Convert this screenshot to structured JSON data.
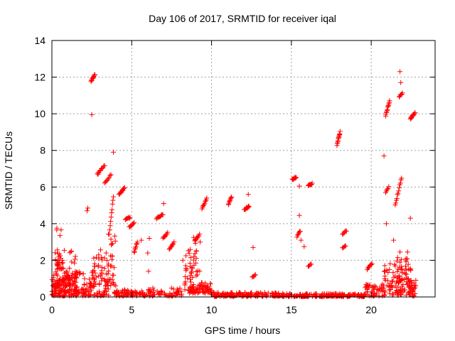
{
  "chart_data": {
    "type": "scatter",
    "title": "Day 106 of 2017, SRMTID for receiver iqal",
    "xlabel": "GPS time / hours",
    "ylabel": "SRMTID / TECUs",
    "xlim": [
      0,
      24
    ],
    "ylim": [
      0,
      14
    ],
    "xticks": [
      0,
      5,
      10,
      15,
      20
    ],
    "yticks": [
      0,
      2,
      4,
      6,
      8,
      10,
      12,
      14
    ],
    "grid": true,
    "marker": "+",
    "color": "#ff0000",
    "clusters": [
      {
        "x": [
          0.0,
          1.6
        ],
        "y": [
          0.05,
          1.2
        ],
        "n": 140
      },
      {
        "x": [
          0.2,
          1.5
        ],
        "y": [
          0.6,
          2.6
        ],
        "n": 60
      },
      {
        "x": [
          0.3,
          0.7
        ],
        "y": [
          1.5,
          3.8
        ],
        "n": 20
      },
      {
        "x": [
          1.4,
          2.0
        ],
        "y": [
          0.2,
          1.4
        ],
        "n": 30
      },
      {
        "x": [
          1.9,
          2.5
        ],
        "y": [
          0.05,
          1.0
        ],
        "n": 30
      },
      {
        "x": [
          2.4,
          2.7
        ],
        "y": [
          0.5,
          1.8
        ],
        "n": 12
      },
      {
        "x": [
          2.6,
          3.6
        ],
        "y": [
          0.05,
          2.6
        ],
        "n": 70
      },
      {
        "x": [
          3.5,
          4.0
        ],
        "y": [
          0.6,
          3.8
        ],
        "n": 28
      },
      {
        "x": [
          3.9,
          4.6
        ],
        "y": [
          0.05,
          0.4
        ],
        "n": 25
      },
      {
        "x": [
          4.6,
          6.0
        ],
        "y": [
          0.05,
          0.4
        ],
        "n": 45
      },
      {
        "x": [
          6.0,
          8.2
        ],
        "y": [
          0.05,
          0.5
        ],
        "n": 60
      },
      {
        "x": [
          8.3,
          8.8
        ],
        "y": [
          0.3,
          2.6
        ],
        "n": 30
      },
      {
        "x": [
          8.6,
          10.0
        ],
        "y": [
          0.2,
          0.8
        ],
        "n": 70
      },
      {
        "x": [
          8.8,
          9.3
        ],
        "y": [
          1.0,
          3.3
        ],
        "n": 18
      },
      {
        "x": [
          10.0,
          14.5
        ],
        "y": [
          0.03,
          0.25
        ],
        "n": 170
      },
      {
        "x": [
          14.5,
          19.6
        ],
        "y": [
          0.02,
          0.18
        ],
        "n": 190
      },
      {
        "x": [
          19.6,
          20.9
        ],
        "y": [
          0.05,
          0.7
        ],
        "n": 50
      },
      {
        "x": [
          20.8,
          22.0
        ],
        "y": [
          0.1,
          1.9
        ],
        "n": 60
      },
      {
        "x": [
          21.6,
          22.6
        ],
        "y": [
          0.1,
          2.5
        ],
        "n": 60
      },
      {
        "x": [
          22.2,
          22.8
        ],
        "y": [
          0.05,
          1.0
        ],
        "n": 30
      }
    ],
    "arcs": [
      {
        "x": [
          2.45,
          2.7
        ],
        "y": [
          11.8,
          12.15
        ],
        "n": 14
      },
      {
        "x": [
          2.85,
          3.3
        ],
        "y": [
          6.7,
          7.2
        ],
        "n": 10
      },
      {
        "x": [
          3.3,
          3.7
        ],
        "y": [
          6.2,
          6.7
        ],
        "n": 8
      },
      {
        "x": [
          3.6,
          3.85
        ],
        "y": [
          3.4,
          5.5
        ],
        "n": 10
      },
      {
        "x": [
          4.2,
          4.55
        ],
        "y": [
          5.6,
          5.95
        ],
        "n": 12
      },
      {
        "x": [
          4.6,
          4.9
        ],
        "y": [
          4.2,
          4.35
        ],
        "n": 8
      },
      {
        "x": [
          4.85,
          5.15
        ],
        "y": [
          3.8,
          4.05
        ],
        "n": 8
      },
      {
        "x": [
          5.15,
          5.35
        ],
        "y": [
          2.4,
          3.0
        ],
        "n": 8
      },
      {
        "x": [
          6.55,
          6.95
        ],
        "y": [
          4.3,
          4.5
        ],
        "n": 10
      },
      {
        "x": [
          6.95,
          7.25
        ],
        "y": [
          3.2,
          3.5
        ],
        "n": 8
      },
      {
        "x": [
          7.35,
          7.65
        ],
        "y": [
          2.6,
          3.0
        ],
        "n": 8
      },
      {
        "x": [
          8.95,
          9.25
        ],
        "y": [
          3.1,
          3.4
        ],
        "n": 8
      },
      {
        "x": [
          9.4,
          9.7
        ],
        "y": [
          4.8,
          5.4
        ],
        "n": 10
      },
      {
        "x": [
          11.05,
          11.25
        ],
        "y": [
          5.05,
          5.45
        ],
        "n": 8
      },
      {
        "x": [
          12.05,
          12.35
        ],
        "y": [
          4.75,
          4.95
        ],
        "n": 10
      },
      {
        "x": [
          12.55,
          12.75
        ],
        "y": [
          1.05,
          1.25
        ],
        "n": 5
      },
      {
        "x": [
          15.05,
          15.3
        ],
        "y": [
          6.4,
          6.55
        ],
        "n": 8
      },
      {
        "x": [
          15.35,
          15.55
        ],
        "y": [
          3.3,
          3.6
        ],
        "n": 6
      },
      {
        "x": [
          16.05,
          16.3
        ],
        "y": [
          6.05,
          6.2
        ],
        "n": 8
      },
      {
        "x": [
          16.05,
          16.25
        ],
        "y": [
          1.65,
          1.8
        ],
        "n": 5
      },
      {
        "x": [
          17.85,
          18.05
        ],
        "y": [
          8.3,
          9.0
        ],
        "n": 12
      },
      {
        "x": [
          18.2,
          18.45
        ],
        "y": [
          3.45,
          3.6
        ],
        "n": 6
      },
      {
        "x": [
          18.2,
          18.4
        ],
        "y": [
          2.65,
          2.8
        ],
        "n": 5
      },
      {
        "x": [
          19.75,
          20.05
        ],
        "y": [
          1.5,
          1.85
        ],
        "n": 8
      },
      {
        "x": [
          20.9,
          21.15
        ],
        "y": [
          9.9,
          10.7
        ],
        "n": 12
      },
      {
        "x": [
          21.75,
          21.95
        ],
        "y": [
          10.9,
          11.15
        ],
        "n": 6
      },
      {
        "x": [
          22.45,
          22.75
        ],
        "y": [
          9.75,
          10.05
        ],
        "n": 12
      },
      {
        "x": [
          21.5,
          21.9
        ],
        "y": [
          5.0,
          6.5
        ],
        "n": 12
      },
      {
        "x": [
          20.9,
          21.1
        ],
        "y": [
          5.7,
          6.0
        ],
        "n": 5
      }
    ],
    "outliers": [
      {
        "x": 2.5,
        "y": 9.95
      },
      {
        "x": 3.85,
        "y": 7.9
      },
      {
        "x": 2.2,
        "y": 4.7
      },
      {
        "x": 2.25,
        "y": 4.85
      },
      {
        "x": 2.9,
        "y": 6.7
      },
      {
        "x": 6.0,
        "y": 2.4
      },
      {
        "x": 6.1,
        "y": 3.2
      },
      {
        "x": 6.05,
        "y": 1.4
      },
      {
        "x": 5.6,
        "y": 3.1
      },
      {
        "x": 7.0,
        "y": 5.1
      },
      {
        "x": 8.2,
        "y": 2.0
      },
      {
        "x": 12.3,
        "y": 5.6
      },
      {
        "x": 12.6,
        "y": 2.7
      },
      {
        "x": 15.5,
        "y": 6.05
      },
      {
        "x": 15.5,
        "y": 4.45
      },
      {
        "x": 15.8,
        "y": 2.75
      },
      {
        "x": 15.6,
        "y": 3.1
      },
      {
        "x": 20.8,
        "y": 7.7
      },
      {
        "x": 20.95,
        "y": 4.0
      },
      {
        "x": 21.8,
        "y": 12.3
      },
      {
        "x": 21.85,
        "y": 11.7
      },
      {
        "x": 22.45,
        "y": 4.3
      },
      {
        "x": 21.4,
        "y": 3.1
      },
      {
        "x": 21.5,
        "y": 1.7
      }
    ]
  }
}
